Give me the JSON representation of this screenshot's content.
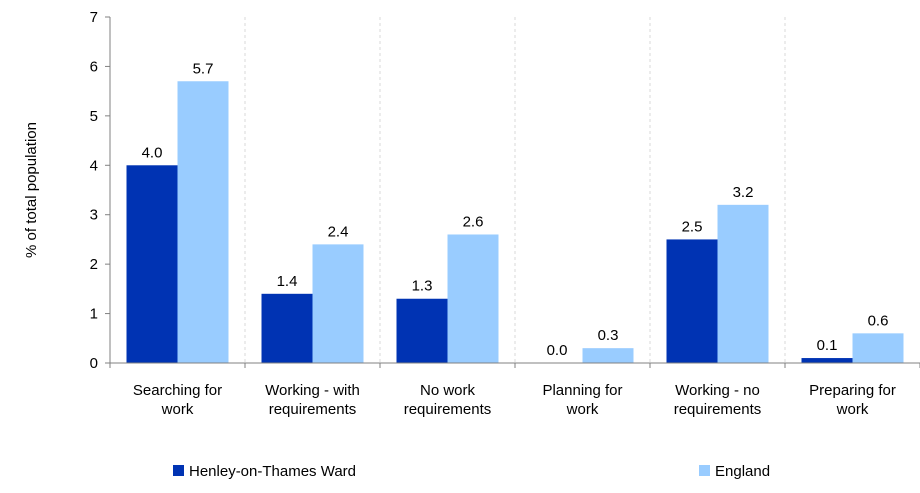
{
  "chart_data": {
    "type": "bar",
    "ylabel": "% of total population",
    "xlabel": "",
    "title": "",
    "ylim": [
      0,
      7
    ],
    "yticks": [
      0,
      1,
      2,
      3,
      4,
      5,
      6,
      7
    ],
    "grid": "vertical separators between categories",
    "legend_position": "bottom",
    "categories": [
      [
        "Searching for",
        "work"
      ],
      [
        "Working - with",
        "requirements"
      ],
      [
        "No work",
        "requirements"
      ],
      [
        "Planning for",
        "work"
      ],
      [
        "Working - no",
        "requirements"
      ],
      [
        "Preparing for",
        "work"
      ]
    ],
    "series": [
      {
        "name": "Henley-on-Thames Ward",
        "color": "#0033b3",
        "values": [
          4.0,
          1.4,
          1.3,
          0.0,
          2.5,
          0.1
        ],
        "labels": [
          "4.0",
          "1.4",
          "1.3",
          "0.0",
          "2.5",
          "0.1"
        ]
      },
      {
        "name": "England",
        "color": "#99ccff",
        "values": [
          5.7,
          2.4,
          2.6,
          0.3,
          3.2,
          0.6
        ],
        "labels": [
          "5.7",
          "2.4",
          "2.6",
          "0.3",
          "3.2",
          "0.6"
        ]
      }
    ]
  }
}
